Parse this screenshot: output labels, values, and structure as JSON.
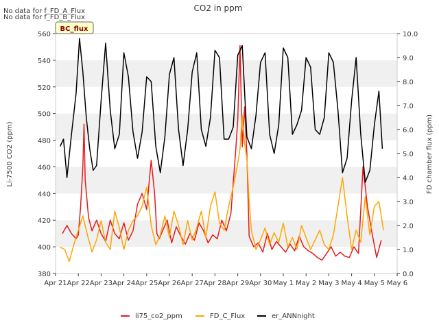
{
  "chart_data": {
    "type": "line",
    "title": "CO2 in ppm",
    "notes": [
      "No data for f_FD_A_Flux",
      "No data for f_FD_B_Flux"
    ],
    "site_label": "BC_flux",
    "ylabel_left": "Li-7500 CO2 (ppm)",
    "ylabel_right": "FD chamber flux (ppm)",
    "x_tick_labels": [
      "Apr 21",
      "Apr 22",
      "Apr 23",
      "Apr 24",
      "Apr 25",
      "Apr 26",
      "Apr 27",
      "Apr 28",
      "Apr 29",
      "Apr 30",
      "May 1",
      "May 2",
      "May 3",
      "May 4",
      "May 5",
      "May 6"
    ],
    "xlim_days": [
      0,
      15
    ],
    "ylim_left": [
      380,
      560
    ],
    "y_ticks_left": [
      "380",
      "400",
      "420",
      "440",
      "460",
      "480",
      "500",
      "520",
      "540",
      "560"
    ],
    "ylim_right": [
      0,
      10
    ],
    "y_ticks_right": [
      "0.0",
      "1.0",
      "2.0",
      "3.0",
      "4.0",
      "5.0",
      "6.0",
      "7.0",
      "8.0",
      "9.0",
      "10.0"
    ],
    "grid": "horizontal bands",
    "legend_position": "bottom",
    "series": [
      {
        "name": "li75_co2_ppm",
        "color": "#e41a1c",
        "axis": "left",
        "x": [
          0.3,
          0.5,
          0.7,
          0.9,
          1.0,
          1.1,
          1.2,
          1.25,
          1.3,
          1.45,
          1.6,
          1.8,
          2.0,
          2.2,
          2.4,
          2.6,
          2.8,
          3.0,
          3.2,
          3.4,
          3.6,
          3.8,
          4.0,
          4.2,
          4.35,
          4.45,
          4.55,
          4.7,
          4.9,
          5.1,
          5.3,
          5.5,
          5.7,
          5.9,
          6.1,
          6.3,
          6.5,
          6.7,
          6.9,
          7.1,
          7.3,
          7.5,
          7.7,
          7.9,
          8.0,
          8.1,
          8.2,
          8.3,
          8.4,
          8.5,
          8.7,
          8.9,
          9.1,
          9.3,
          9.5,
          9.7,
          9.9,
          10.1,
          10.3,
          10.5,
          10.7,
          10.9,
          11.1,
          11.3,
          11.5,
          11.7,
          11.9,
          12.1,
          12.3,
          12.5,
          12.7,
          12.9,
          13.1,
          13.3,
          13.5,
          13.7,
          13.9,
          14.1,
          14.3
        ],
        "values": [
          410,
          416,
          410,
          406,
          409,
          430,
          460,
          492,
          450,
          422,
          412,
          420,
          410,
          404,
          420,
          410,
          406,
          418,
          405,
          412,
          432,
          440,
          428,
          465,
          440,
          410,
          406,
          412,
          420,
          403,
          415,
          408,
          402,
          410,
          405,
          418,
          412,
          403,
          409,
          406,
          420,
          412,
          425,
          470,
          495,
          551,
          475,
          505,
          470,
          408,
          400,
          403,
          396,
          410,
          398,
          404,
          400,
          396,
          402,
          397,
          408,
          400,
          397,
          395,
          392,
          390,
          395,
          400,
          393,
          396,
          393,
          392,
          400,
          395,
          460,
          430,
          410,
          392,
          405
        ]
      },
      {
        "name": "FD_C_Flux",
        "color": "#ffa500",
        "axis": "right",
        "x": [
          0.2,
          0.4,
          0.6,
          0.8,
          1.0,
          1.2,
          1.4,
          1.6,
          1.8,
          2.0,
          2.2,
          2.4,
          2.6,
          2.8,
          3.0,
          3.2,
          3.4,
          3.6,
          3.8,
          4.0,
          4.2,
          4.4,
          4.6,
          4.8,
          5.0,
          5.2,
          5.4,
          5.6,
          5.8,
          6.0,
          6.2,
          6.4,
          6.6,
          6.8,
          7.0,
          7.2,
          7.4,
          7.6,
          7.8,
          8.0,
          8.1,
          8.2,
          8.3,
          8.4,
          8.5,
          8.6,
          8.8,
          9.0,
          9.2,
          9.4,
          9.6,
          9.8,
          10.0,
          10.2,
          10.4,
          10.6,
          10.8,
          11.0,
          11.2,
          11.4,
          11.6,
          11.8,
          12.0,
          12.2,
          12.4,
          12.6,
          12.8,
          13.0,
          13.2,
          13.4,
          13.6,
          13.8,
          14.0,
          14.2,
          14.4
        ],
        "values": [
          1.1,
          1.0,
          0.5,
          1.2,
          1.8,
          2.4,
          1.6,
          0.9,
          1.4,
          2.2,
          1.3,
          1.0,
          2.6,
          1.9,
          1.0,
          1.8,
          2.2,
          2.4,
          2.8,
          3.6,
          2.0,
          1.2,
          1.6,
          2.4,
          1.5,
          2.6,
          2.0,
          1.2,
          2.2,
          1.4,
          1.9,
          2.6,
          1.5,
          2.8,
          3.4,
          2.1,
          1.8,
          2.8,
          3.6,
          4.6,
          5.2,
          6.6,
          5.4,
          4.8,
          3.0,
          1.8,
          1.0,
          1.4,
          1.9,
          1.2,
          1.7,
          1.3,
          2.1,
          1.1,
          1.5,
          1.0,
          2.0,
          1.5,
          1.0,
          1.4,
          1.8,
          1.2,
          1.0,
          1.6,
          2.8,
          4.0,
          2.4,
          1.0,
          1.8,
          1.3,
          3.2,
          1.6,
          2.8,
          3.0,
          1.8
        ]
      },
      {
        "name": "er_ANNnight",
        "color": "#000000",
        "axis": "right",
        "x": [
          0.2,
          0.35,
          0.5,
          0.7,
          0.9,
          1.05,
          1.2,
          1.35,
          1.5,
          1.65,
          1.8,
          2.0,
          2.2,
          2.4,
          2.6,
          2.8,
          3.0,
          3.2,
          3.4,
          3.6,
          3.8,
          4.0,
          4.2,
          4.4,
          4.6,
          4.8,
          5.0,
          5.2,
          5.4,
          5.6,
          5.8,
          6.0,
          6.2,
          6.4,
          6.6,
          6.8,
          7.0,
          7.2,
          7.4,
          7.6,
          7.8,
          8.0,
          8.2,
          8.4,
          8.6,
          8.8,
          9.0,
          9.2,
          9.4,
          9.6,
          9.8,
          10.0,
          10.2,
          10.4,
          10.6,
          10.8,
          11.0,
          11.2,
          11.4,
          11.6,
          11.8,
          12.0,
          12.2,
          12.4,
          12.6,
          12.8,
          13.0,
          13.2,
          13.4,
          13.6,
          13.8,
          14.0,
          14.2,
          14.35
        ],
        "values": [
          5.3,
          5.6,
          4.0,
          5.8,
          7.5,
          9.8,
          8.4,
          6.5,
          5.2,
          4.3,
          4.5,
          7.2,
          9.6,
          6.8,
          5.2,
          5.8,
          9.2,
          8.2,
          5.9,
          4.8,
          5.9,
          8.2,
          8.0,
          5.3,
          4.2,
          5.7,
          8.3,
          9.0,
          6.0,
          4.5,
          6.0,
          8.4,
          9.2,
          6.0,
          5.3,
          6.5,
          9.3,
          9.0,
          5.6,
          5.6,
          6.1,
          9.1,
          9.5,
          5.7,
          5.2,
          6.6,
          8.8,
          9.2,
          5.8,
          5.0,
          6.2,
          9.4,
          9.0,
          5.8,
          6.2,
          6.8,
          9.0,
          8.6,
          6.0,
          5.8,
          6.5,
          9.2,
          8.8,
          6.8,
          4.2,
          4.8,
          7.2,
          9.0,
          5.8,
          3.8,
          4.3,
          6.2,
          7.6,
          5.2
        ]
      }
    ]
  }
}
